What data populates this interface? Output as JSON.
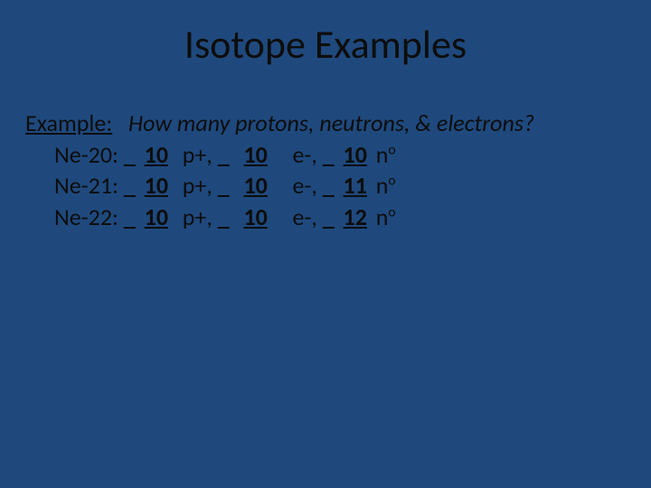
{
  "background_color": "#1f497d",
  "text_color": "#0d0d0d",
  "title": "Isotope Examples",
  "example_label": "Example:",
  "question": "How many protons, neutrons, & electrons?",
  "rows": [
    {
      "label": "Ne-20:",
      "protons": "10",
      "electrons": "10",
      "neutrons": "10"
    },
    {
      "label": "Ne-21:",
      "protons": "10",
      "electrons": "10",
      "neutrons": "11"
    },
    {
      "label": "Ne-22:",
      "protons": "10",
      "electrons": "10",
      "neutrons": "12"
    }
  ],
  "proton_suffix": "p+,",
  "electron_suffix": "e-,",
  "neutron_suffix_main": "n",
  "neutron_suffix_super": "o",
  "underscore_prefix": "_",
  "title_fontsize": 44,
  "body_fontsize": 26
}
